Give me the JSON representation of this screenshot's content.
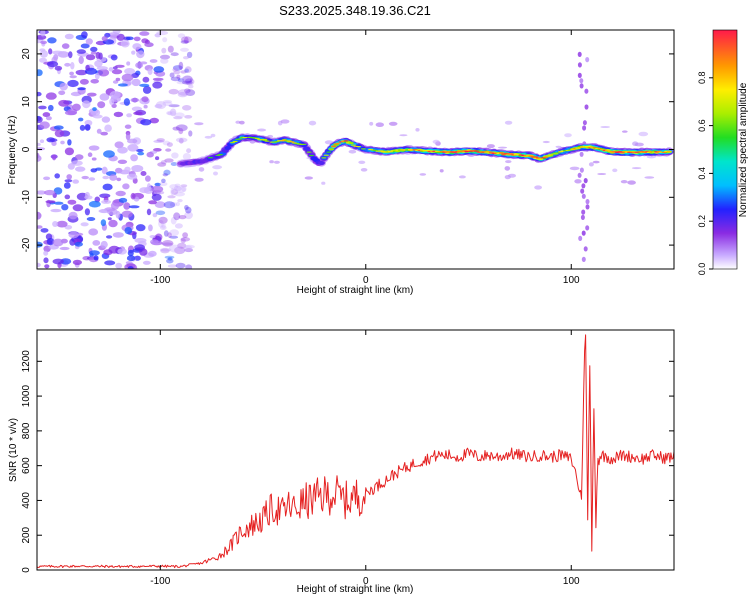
{
  "title": "S233.2025.348.19.36.C21",
  "colorbar": {
    "label": "Normalized spectral amplitude",
    "ticks": [
      "0.0",
      "0.2",
      "0.4",
      "0.6",
      "0.8"
    ],
    "tick_values": [
      0.0,
      0.2,
      0.4,
      0.6,
      0.8
    ],
    "range": [
      0,
      1
    ]
  },
  "chart_data": [
    {
      "type": "heatmap",
      "title": "S233.2025.348.19.36.C21",
      "xlabel": "Height of straight line (km)",
      "ylabel": "Frequency (Hz)",
      "xlim": [
        -160,
        150
      ],
      "ylim": [
        -25,
        25
      ],
      "xticks": [
        -100,
        0,
        100
      ],
      "xtick_labels": [
        "-100",
        "0",
        "100"
      ],
      "yticks": [
        -20,
        -10,
        0,
        10,
        20
      ],
      "ytick_labels": [
        "-20",
        "-10",
        "0",
        "10",
        "20"
      ],
      "ridge": {
        "x": [
          -90,
          -80,
          -70,
          -65,
          -60,
          -55,
          -50,
          -45,
          -40,
          -35,
          -30,
          -25,
          -22,
          -20,
          -15,
          -10,
          -5,
          0,
          10,
          20,
          30,
          40,
          50,
          60,
          70,
          80,
          85,
          90,
          95,
          100,
          105,
          110,
          120,
          130,
          140,
          148
        ],
        "freq": [
          -3,
          -2.5,
          -1,
          1.5,
          2.5,
          2.5,
          2,
          1.5,
          2,
          1.5,
          1,
          -2,
          -3,
          -1.5,
          1,
          1.8,
          0.8,
          0,
          -0.5,
          0,
          -0.3,
          -0.6,
          -0.3,
          -0.6,
          -1,
          -1.3,
          -2,
          -1.2,
          -0.5,
          0,
          0.5,
          0.5,
          -0.5,
          -0.6,
          -0.5,
          -0.5
        ],
        "amplitude": [
          0.35,
          0.45,
          0.55,
          0.6,
          0.65,
          0.55,
          0.7,
          0.6,
          0.75,
          0.7,
          0.6,
          0.5,
          0.45,
          0.6,
          0.85,
          0.9,
          0.7,
          0.6,
          0.8,
          0.75,
          0.85,
          0.9,
          0.95,
          0.85,
          0.9,
          0.95,
          0.9,
          0.8,
          0.7,
          0.75,
          0.8,
          0.85,
          0.95,
          0.95,
          0.9,
          0.8
        ]
      },
      "noise_region_x": [
        -160,
        -85
      ],
      "noise_amplitude": [
        0.05,
        0.3
      ],
      "vertical_artifact_x": [
        104,
        108
      ],
      "colorbar_label": "Normalized spectral amplitude"
    },
    {
      "type": "line",
      "xlabel": "Height of straight line (km)",
      "ylabel": "SNR (10 * v/v)",
      "xlim": [
        -160,
        150
      ],
      "ylim": [
        0,
        1380
      ],
      "xticks": [
        -100,
        0,
        100
      ],
      "xtick_labels": [
        "-100",
        "0",
        "100"
      ],
      "yticks": [
        0,
        200,
        400,
        600,
        800,
        1000,
        1200
      ],
      "ytick_labels": [
        "0",
        "200",
        "400",
        "600",
        "800",
        "1000",
        "1200"
      ],
      "series": [
        {
          "name": "SNR",
          "color": "#e52222",
          "x": [
            -160,
            -140,
            -120,
            -100,
            -90,
            -80,
            -75,
            -70,
            -65,
            -62,
            -60,
            -55,
            -50,
            -48,
            -45,
            -40,
            -38,
            -35,
            -30,
            -25,
            -20,
            -15,
            -10,
            -5,
            0,
            5,
            10,
            15,
            20,
            25,
            30,
            35,
            40,
            45,
            50,
            55,
            60,
            65,
            70,
            75,
            80,
            85,
            90,
            95,
            100,
            103,
            105,
            106,
            107,
            108,
            109,
            110,
            111,
            112,
            113,
            115,
            120,
            125,
            130,
            135,
            140,
            145,
            150
          ],
          "y": [
            20,
            22,
            20,
            22,
            20,
            40,
            60,
            90,
            150,
            200,
            230,
            260,
            290,
            320,
            360,
            330,
            370,
            350,
            390,
            410,
            430,
            440,
            400,
            420,
            440,
            480,
            520,
            560,
            590,
            620,
            640,
            660,
            660,
            650,
            670,
            650,
            660,
            650,
            670,
            660,
            650,
            660,
            650,
            660,
            640,
            520,
            400,
            1050,
            1380,
            300,
            1150,
            140,
            900,
            300,
            650,
            660,
            640,
            660,
            650,
            640,
            660,
            645,
            650
          ]
        }
      ]
    }
  ]
}
